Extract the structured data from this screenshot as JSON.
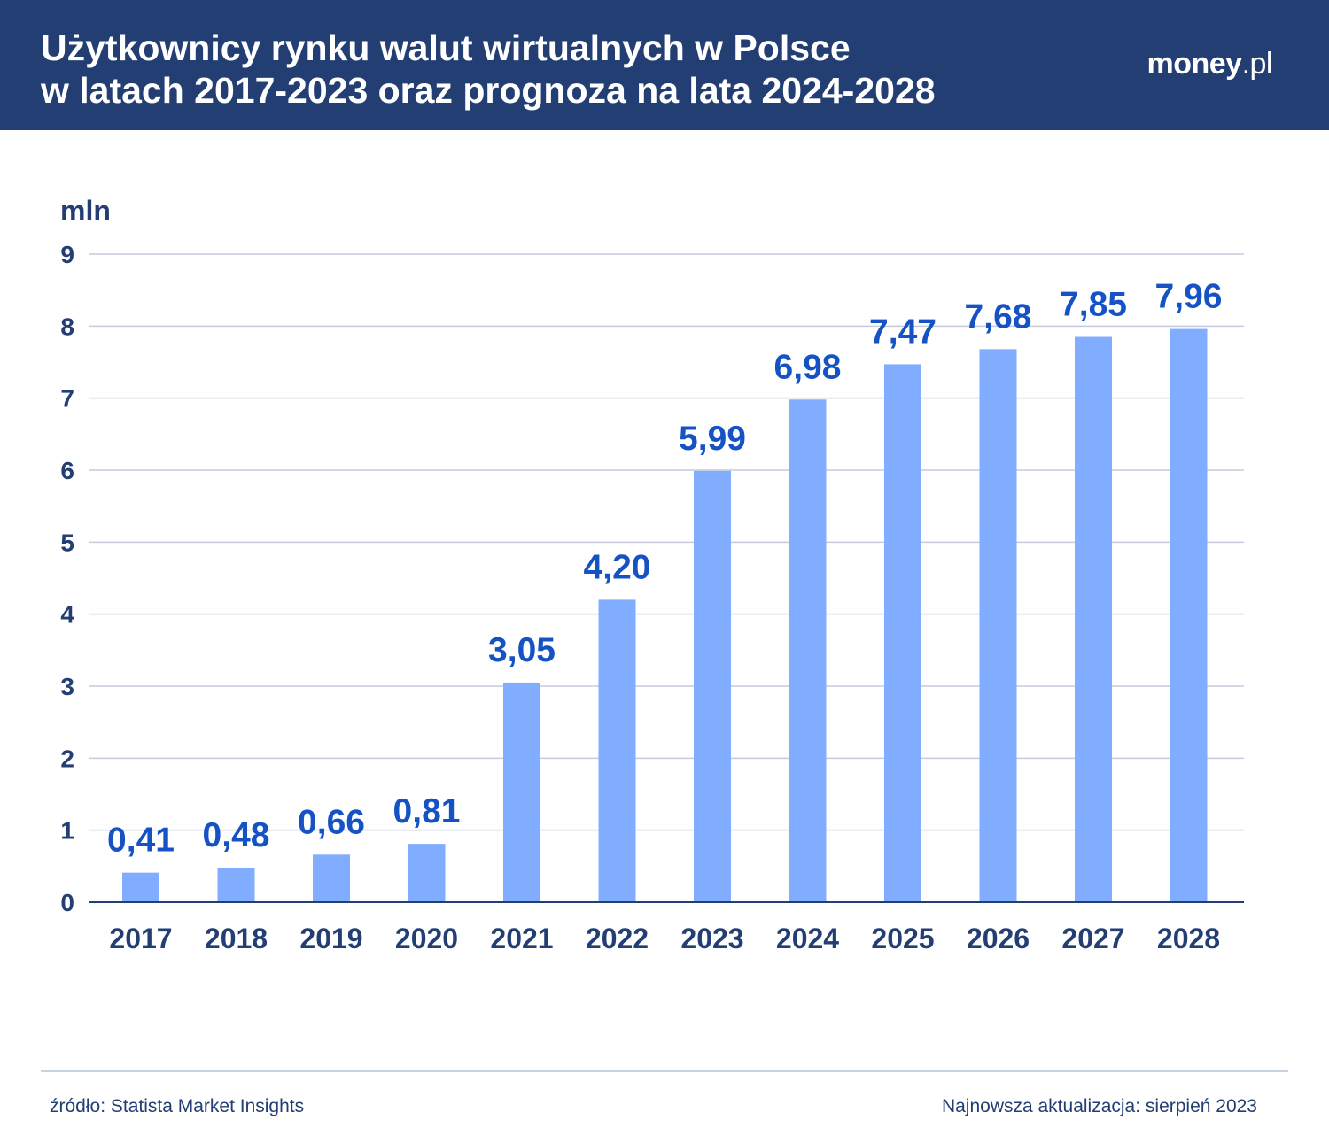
{
  "header": {
    "title_line1": "Użytkownicy rynku walut wirtualnych w Polsce",
    "title_line2": "w latach 2017-2023 oraz prognoza na lata 2024-2028",
    "logo_main": "money",
    "logo_suffix": ".pl"
  },
  "colors": {
    "header_bg": "#223e73",
    "bar": "#80adff",
    "bar_label": "#1553c5",
    "axis_text": "#223e73",
    "grid": "#c5cbdc"
  },
  "chart_data": {
    "type": "bar",
    "title": "Użytkownicy rynku walut wirtualnych w Polsce w latach 2017-2023 oraz prognoza na lata 2024-2028",
    "unit_label": "mln",
    "ylabel": "mln",
    "xlabel": "",
    "categories": [
      "2017",
      "2018",
      "2019",
      "2020",
      "2021",
      "2022",
      "2023",
      "2024",
      "2025",
      "2026",
      "2027",
      "2028"
    ],
    "values": [
      0.41,
      0.48,
      0.66,
      0.81,
      3.05,
      4.2,
      5.99,
      6.98,
      7.47,
      7.68,
      7.85,
      7.96
    ],
    "value_labels": [
      "0,41",
      "0,48",
      "0,66",
      "0,81",
      "3,05",
      "4,20",
      "5,99",
      "6,98",
      "7,47",
      "7,68",
      "7,85",
      "7,96"
    ],
    "ylim": [
      0,
      9
    ],
    "yticks": [
      0,
      1,
      2,
      3,
      4,
      5,
      6,
      7,
      8,
      9
    ],
    "grid": true
  },
  "footer": {
    "source": "źródło: Statista Market Insights",
    "updated": "Najnowsza aktualizacja: sierpień 2023"
  }
}
